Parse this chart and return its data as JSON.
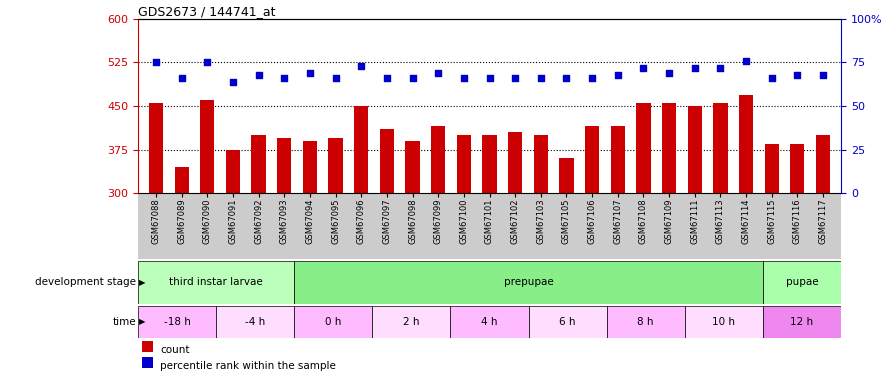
{
  "title": "GDS2673 / 144741_at",
  "samples": [
    "GSM67088",
    "GSM67089",
    "GSM67090",
    "GSM67091",
    "GSM67092",
    "GSM67093",
    "GSM67094",
    "GSM67095",
    "GSM67096",
    "GSM67097",
    "GSM67098",
    "GSM67099",
    "GSM67100",
    "GSM67101",
    "GSM67102",
    "GSM67103",
    "GSM67105",
    "GSM67106",
    "GSM67107",
    "GSM67108",
    "GSM67109",
    "GSM67111",
    "GSM67113",
    "GSM67114",
    "GSM67115",
    "GSM67116",
    "GSM67117"
  ],
  "counts": [
    455,
    345,
    460,
    375,
    400,
    395,
    390,
    395,
    450,
    410,
    390,
    415,
    400,
    400,
    405,
    400,
    360,
    415,
    415,
    455,
    455,
    450,
    455,
    468,
    385,
    385,
    400
  ],
  "percentiles": [
    75,
    66,
    75,
    64,
    68,
    66,
    69,
    66,
    73,
    66,
    66,
    69,
    66,
    66,
    66,
    66,
    66,
    66,
    68,
    72,
    69,
    72,
    72,
    76,
    66,
    68,
    68
  ],
  "ylim_left": [
    300,
    600
  ],
  "ylim_right": [
    0,
    100
  ],
  "yticks_left": [
    300,
    375,
    450,
    525,
    600
  ],
  "yticks_right": [
    0,
    25,
    50,
    75,
    100
  ],
  "bar_color": "#cc0000",
  "dot_color": "#0000cc",
  "dotted_lines": [
    375,
    450,
    525
  ],
  "dev_stages": [
    {
      "label": "third instar larvae",
      "start": 0,
      "end": 6,
      "color": "#bbffbb"
    },
    {
      "label": "prepupae",
      "start": 6,
      "end": 24,
      "color": "#88ee88"
    },
    {
      "label": "pupae",
      "start": 24,
      "end": 27,
      "color": "#aaffaa"
    }
  ],
  "time_blocks": [
    {
      "label": "-18 h",
      "start": 0,
      "end": 3,
      "color": "#ffbbff"
    },
    {
      "label": "-4 h",
      "start": 3,
      "end": 6,
      "color": "#ffddff"
    },
    {
      "label": "0 h",
      "start": 6,
      "end": 9,
      "color": "#ffbbff"
    },
    {
      "label": "2 h",
      "start": 9,
      "end": 12,
      "color": "#ffddff"
    },
    {
      "label": "4 h",
      "start": 12,
      "end": 15,
      "color": "#ffbbff"
    },
    {
      "label": "6 h",
      "start": 15,
      "end": 18,
      "color": "#ffddff"
    },
    {
      "label": "8 h",
      "start": 18,
      "end": 21,
      "color": "#ffbbff"
    },
    {
      "label": "10 h",
      "start": 21,
      "end": 24,
      "color": "#ffddff"
    },
    {
      "label": "12 h",
      "start": 24,
      "end": 27,
      "color": "#ee88ee"
    }
  ],
  "xtick_bg_color": "#cccccc",
  "bar_color_legend": "#cc0000",
  "dot_color_legend": "#0000cc"
}
